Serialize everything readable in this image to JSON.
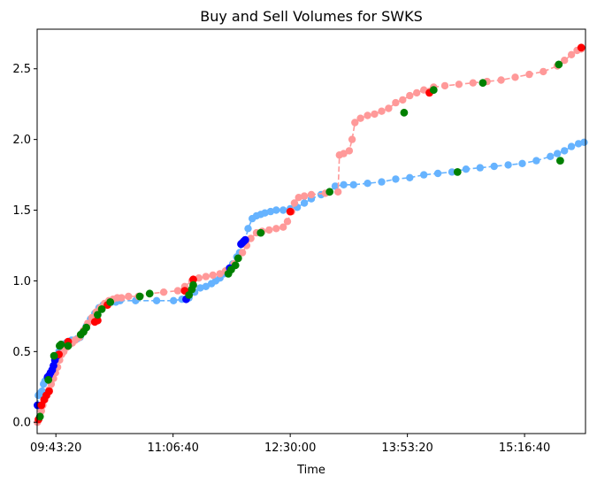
{
  "chart_data": {
    "type": "scatter",
    "title": "Buy and Sell Volumes for SWKS",
    "xlabel": "Time",
    "ylabel": "",
    "x_unit": "time of day",
    "xlim": [
      "09:30:00",
      "16:00:00"
    ],
    "ylim": [
      -0.08,
      2.78
    ],
    "x_ticks": [
      "09:43:20",
      "11:06:40",
      "12:30:00",
      "13:53:20",
      "15:16:40"
    ],
    "y_ticks": [
      "0.0",
      "0.5",
      "1.0",
      "1.5",
      "2.0",
      "2.5"
    ],
    "grid": false,
    "legend": "none",
    "colors": {
      "buy_line": "#66b3ff",
      "sell_line": "#ff9999",
      "buy_highlight": "#0000ff",
      "sell_highlight": "#ff0000",
      "green_marker": "#008000"
    },
    "series": [
      {
        "role": "buy-volume",
        "color": "#66b3ff",
        "line_style": "dashed",
        "points": [
          [
            "09:30:10",
            0.12
          ],
          [
            "09:30:50",
            0.19
          ],
          [
            "09:31:40",
            0.2
          ],
          [
            "09:32:40",
            0.21
          ],
          [
            "09:33:30",
            0.22
          ],
          [
            "09:34:30",
            0.27
          ],
          [
            "09:35:30",
            0.29
          ],
          [
            "09:36:30",
            0.3
          ],
          [
            "09:37:30",
            0.32
          ],
          [
            "09:38:30",
            0.33
          ],
          [
            "09:39:30",
            0.35
          ],
          [
            "09:40:40",
            0.37
          ],
          [
            "09:41:40",
            0.4
          ],
          [
            "09:42:40",
            0.43
          ],
          [
            "09:44:00",
            0.46
          ],
          [
            "09:45:30",
            0.5
          ],
          [
            "09:47:00",
            0.53
          ],
          [
            "09:48:40",
            0.55
          ],
          [
            "09:50:30",
            0.56
          ],
          [
            "09:52:30",
            0.57
          ],
          [
            "09:54:30",
            0.58
          ],
          [
            "09:56:30",
            0.58
          ],
          [
            "09:58:30",
            0.59
          ],
          [
            "10:00:30",
            0.6
          ],
          [
            "10:02:40",
            0.64
          ],
          [
            "10:05:00",
            0.68
          ],
          [
            "10:08:00",
            0.73
          ],
          [
            "10:11:00",
            0.77
          ],
          [
            "10:14:00",
            0.81
          ],
          [
            "10:17:00",
            0.83
          ],
          [
            "10:20:00",
            0.84
          ],
          [
            "10:23:00",
            0.85
          ],
          [
            "10:26:00",
            0.85
          ],
          [
            "10:29:00",
            0.86
          ],
          [
            "10:40:00",
            0.86
          ],
          [
            "10:55:00",
            0.86
          ],
          [
            "11:07:00",
            0.86
          ],
          [
            "11:13:00",
            0.87
          ],
          [
            "11:18:00",
            0.88
          ],
          [
            "11:22:00",
            0.92
          ],
          [
            "11:26:00",
            0.95
          ],
          [
            "11:30:00",
            0.96
          ],
          [
            "11:34:00",
            0.98
          ],
          [
            "11:37:00",
            1.0
          ],
          [
            "11:40:00",
            1.02
          ],
          [
            "11:43:00",
            1.05
          ],
          [
            "11:46:00",
            1.08
          ],
          [
            "11:49:00",
            1.12
          ],
          [
            "11:52:00",
            1.17
          ],
          [
            "11:54:00",
            1.2
          ],
          [
            "11:56:00",
            1.27
          ],
          [
            "11:58:00",
            1.29
          ],
          [
            "12:00:00",
            1.37
          ],
          [
            "12:03:00",
            1.44
          ],
          [
            "12:06:00",
            1.46
          ],
          [
            "12:09:00",
            1.47
          ],
          [
            "12:12:00",
            1.48
          ],
          [
            "12:16:00",
            1.49
          ],
          [
            "12:20:00",
            1.5
          ],
          [
            "12:25:00",
            1.5
          ],
          [
            "12:30:00",
            1.51
          ],
          [
            "12:35:00",
            1.52
          ],
          [
            "12:40:00",
            1.55
          ],
          [
            "12:45:00",
            1.58
          ],
          [
            "12:52:00",
            1.61
          ],
          [
            "12:58:00",
            1.63
          ],
          [
            "13:02:00",
            1.67
          ],
          [
            "13:08:00",
            1.68
          ],
          [
            "13:15:00",
            1.68
          ],
          [
            "13:25:00",
            1.69
          ],
          [
            "13:35:00",
            1.7
          ],
          [
            "13:45:00",
            1.72
          ],
          [
            "13:55:00",
            1.73
          ],
          [
            "14:05:00",
            1.75
          ],
          [
            "14:15:00",
            1.76
          ],
          [
            "14:25:00",
            1.77
          ],
          [
            "14:35:00",
            1.79
          ],
          [
            "14:45:00",
            1.8
          ],
          [
            "14:55:00",
            1.81
          ],
          [
            "15:05:00",
            1.82
          ],
          [
            "15:15:00",
            1.83
          ],
          [
            "15:25:00",
            1.85
          ],
          [
            "15:35:00",
            1.88
          ],
          [
            "15:40:00",
            1.9
          ],
          [
            "15:45:00",
            1.92
          ],
          [
            "15:50:00",
            1.95
          ],
          [
            "15:55:00",
            1.97
          ],
          [
            "15:59:00",
            1.98
          ]
        ]
      },
      {
        "role": "sell-volume",
        "color": "#ff9999",
        "line_style": "dashed",
        "points": [
          [
            "09:30:10",
            0.0
          ],
          [
            "09:31:00",
            0.02
          ],
          [
            "09:32:00",
            0.04
          ],
          [
            "09:33:00",
            0.08
          ],
          [
            "09:34:00",
            0.12
          ],
          [
            "09:35:30",
            0.16
          ],
          [
            "09:37:00",
            0.19
          ],
          [
            "09:38:30",
            0.23
          ],
          [
            "09:40:00",
            0.27
          ],
          [
            "09:41:40",
            0.31
          ],
          [
            "09:43:00",
            0.35
          ],
          [
            "09:44:30",
            0.39
          ],
          [
            "09:46:00",
            0.44
          ],
          [
            "09:47:30",
            0.48
          ],
          [
            "09:49:00",
            0.5
          ],
          [
            "09:51:00",
            0.53
          ],
          [
            "09:53:00",
            0.55
          ],
          [
            "09:55:00",
            0.56
          ],
          [
            "09:57:00",
            0.58
          ],
          [
            "10:00:00",
            0.6
          ],
          [
            "10:03:00",
            0.65
          ],
          [
            "10:06:00",
            0.7
          ],
          [
            "10:09:00",
            0.74
          ],
          [
            "10:12:00",
            0.78
          ],
          [
            "10:15:00",
            0.81
          ],
          [
            "10:18:00",
            0.84
          ],
          [
            "10:21:00",
            0.86
          ],
          [
            "10:24:00",
            0.87
          ],
          [
            "10:27:00",
            0.88
          ],
          [
            "10:30:00",
            0.88
          ],
          [
            "10:35:00",
            0.89
          ],
          [
            "10:42:00",
            0.89
          ],
          [
            "10:50:00",
            0.91
          ],
          [
            "11:00:00",
            0.92
          ],
          [
            "11:10:00",
            0.93
          ],
          [
            "11:15:00",
            0.96
          ],
          [
            "11:20:00",
            1.0
          ],
          [
            "11:25:00",
            1.02
          ],
          [
            "11:30:00",
            1.03
          ],
          [
            "11:35:00",
            1.04
          ],
          [
            "11:40:00",
            1.05
          ],
          [
            "11:44:00",
            1.07
          ],
          [
            "11:47:00",
            1.09
          ],
          [
            "11:50:00",
            1.12
          ],
          [
            "11:53:00",
            1.16
          ],
          [
            "11:56:00",
            1.2
          ],
          [
            "11:59:00",
            1.25
          ],
          [
            "12:02:00",
            1.3
          ],
          [
            "12:06:00",
            1.34
          ],
          [
            "12:10:00",
            1.35
          ],
          [
            "12:15:00",
            1.36
          ],
          [
            "12:20:00",
            1.37
          ],
          [
            "12:25:00",
            1.38
          ],
          [
            "12:28:00",
            1.42
          ],
          [
            "12:31:00",
            1.49
          ],
          [
            "12:33:00",
            1.55
          ],
          [
            "12:36:00",
            1.59
          ],
          [
            "12:40:00",
            1.6
          ],
          [
            "12:45:00",
            1.61
          ],
          [
            "12:55:00",
            1.62
          ],
          [
            "13:04:00",
            1.63
          ],
          [
            "13:05:00",
            1.89
          ],
          [
            "13:08:00",
            1.9
          ],
          [
            "13:12:00",
            1.92
          ],
          [
            "13:14:00",
            2.0
          ],
          [
            "13:16:00",
            2.12
          ],
          [
            "13:20:00",
            2.15
          ],
          [
            "13:25:00",
            2.17
          ],
          [
            "13:30:00",
            2.18
          ],
          [
            "13:35:00",
            2.2
          ],
          [
            "13:40:00",
            2.22
          ],
          [
            "13:45:00",
            2.26
          ],
          [
            "13:50:00",
            2.28
          ],
          [
            "13:55:00",
            2.31
          ],
          [
            "14:00:00",
            2.33
          ],
          [
            "14:05:00",
            2.35
          ],
          [
            "14:12:00",
            2.37
          ],
          [
            "14:20:00",
            2.38
          ],
          [
            "14:30:00",
            2.39
          ],
          [
            "14:40:00",
            2.4
          ],
          [
            "14:50:00",
            2.41
          ],
          [
            "15:00:00",
            2.42
          ],
          [
            "15:10:00",
            2.44
          ],
          [
            "15:20:00",
            2.46
          ],
          [
            "15:30:00",
            2.48
          ],
          [
            "15:40:00",
            2.52
          ],
          [
            "15:45:00",
            2.56
          ],
          [
            "15:50:00",
            2.6
          ],
          [
            "15:54:00",
            2.63
          ],
          [
            "15:57:00",
            2.64
          ]
        ]
      }
    ],
    "highlight_markers": [
      {
        "color": "#0000ff",
        "points": [
          [
            "09:30:20",
            0.12
          ],
          [
            "09:37:30",
            0.32
          ],
          [
            "09:38:30",
            0.33
          ],
          [
            "09:39:30",
            0.35
          ],
          [
            "09:40:40",
            0.37
          ],
          [
            "09:41:40",
            0.4
          ],
          [
            "09:42:40",
            0.44
          ],
          [
            "09:44:00",
            0.47
          ],
          [
            "11:16:00",
            0.87
          ],
          [
            "11:47:00",
            1.09
          ],
          [
            "11:55:00",
            1.26
          ],
          [
            "11:56:00",
            1.27
          ],
          [
            "11:57:00",
            1.28
          ],
          [
            "11:58:00",
            1.29
          ]
        ]
      },
      {
        "color": "#ff0000",
        "points": [
          [
            "09:31:00",
            0.02
          ],
          [
            "09:33:00",
            0.12
          ],
          [
            "09:35:00",
            0.16
          ],
          [
            "09:36:30",
            0.19
          ],
          [
            "09:38:30",
            0.22
          ],
          [
            "09:45:30",
            0.48
          ],
          [
            "09:52:00",
            0.57
          ],
          [
            "10:11:00",
            0.71
          ],
          [
            "10:13:00",
            0.72
          ],
          [
            "10:20:00",
            0.83
          ],
          [
            "11:15:00",
            0.93
          ],
          [
            "11:21:00",
            1.01
          ],
          [
            "12:30:00",
            1.49
          ],
          [
            "14:09:00",
            2.33
          ],
          [
            "15:57:00",
            2.65
          ]
        ]
      },
      {
        "color": "#008000",
        "points": [
          [
            "09:32:00",
            0.04
          ],
          [
            "09:38:00",
            0.3
          ],
          [
            "09:42:00",
            0.47
          ],
          [
            "09:46:00",
            0.54
          ],
          [
            "09:47:00",
            0.55
          ],
          [
            "09:52:00",
            0.54
          ],
          [
            "10:01:00",
            0.62
          ],
          [
            "10:03:00",
            0.64
          ],
          [
            "10:05:00",
            0.67
          ],
          [
            "10:13:00",
            0.76
          ],
          [
            "10:16:00",
            0.8
          ],
          [
            "10:22:00",
            0.85
          ],
          [
            "10:43:00",
            0.89
          ],
          [
            "10:50:00",
            0.91
          ],
          [
            "11:18:00",
            0.9
          ],
          [
            "11:20:00",
            0.94
          ],
          [
            "11:21:00",
            0.97
          ],
          [
            "11:46:00",
            1.05
          ],
          [
            "11:48:00",
            1.08
          ],
          [
            "11:51:00",
            1.11
          ],
          [
            "11:53:00",
            1.16
          ],
          [
            "12:09:00",
            1.34
          ],
          [
            "12:58:00",
            1.63
          ],
          [
            "13:51:00",
            2.19
          ],
          [
            "14:12:00",
            2.35
          ],
          [
            "14:29:00",
            1.77
          ],
          [
            "14:47:00",
            2.4
          ],
          [
            "15:41:00",
            2.53
          ],
          [
            "15:42:00",
            1.85
          ]
        ]
      }
    ]
  }
}
